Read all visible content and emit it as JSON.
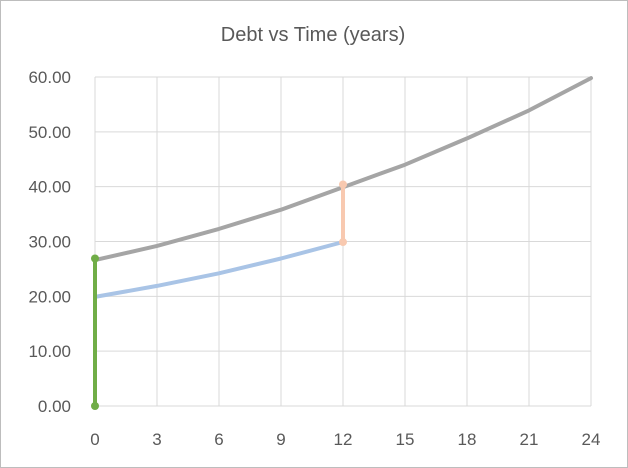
{
  "chart_data": {
    "type": "line",
    "title": "Debt vs Time (years)",
    "xlabel": "",
    "ylabel": "",
    "xlim": [
      0,
      24
    ],
    "ylim": [
      0,
      60
    ],
    "x_ticks": [
      0,
      3,
      6,
      9,
      12,
      15,
      18,
      21,
      24
    ],
    "x_tick_labels": [
      "0",
      "3",
      "6",
      "9",
      "12",
      "15",
      "18",
      "21",
      "24"
    ],
    "y_ticks": [
      0,
      10,
      20,
      30,
      40,
      50,
      60
    ],
    "y_tick_labels": [
      "0.00",
      "10.00",
      "20.00",
      "30.00",
      "40.00",
      "50.00",
      "60.00"
    ],
    "grid": true,
    "legend": "none",
    "series": [
      {
        "color": "#a5a5a5",
        "x": [
          0,
          3,
          6,
          9,
          12,
          15,
          18,
          21,
          24
        ],
        "y": [
          26.6,
          29.2,
          32.3,
          35.8,
          39.9,
          44.0,
          48.8,
          53.9,
          59.8
        ]
      },
      {
        "color": "#a9c4e6",
        "x": [
          0,
          3,
          6,
          9,
          12
        ],
        "y": [
          19.9,
          21.9,
          24.2,
          26.9,
          29.9
        ]
      },
      {
        "color": "#f8c9b0",
        "markers": true,
        "x": [
          12,
          12
        ],
        "y": [
          29.9,
          40.4
        ]
      },
      {
        "color": "#70ad47",
        "markers": true,
        "x": [
          0,
          0
        ],
        "y": [
          0,
          26.9
        ]
      }
    ]
  }
}
